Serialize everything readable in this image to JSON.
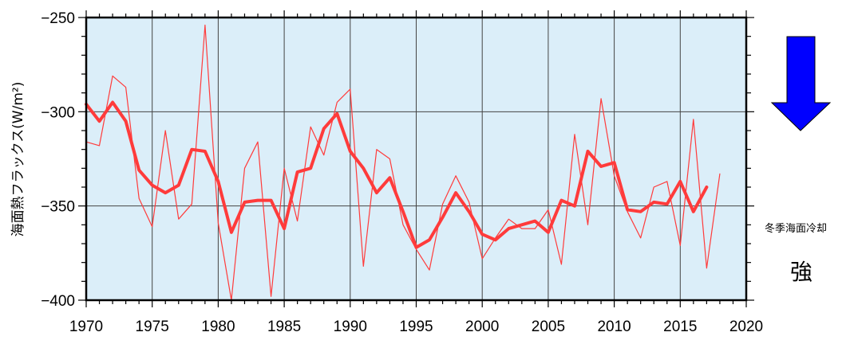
{
  "chart_data": {
    "type": "line",
    "title": "",
    "xlabel": "",
    "ylabel": "海面熱フラックス(W/m²)",
    "xlim": [
      1970,
      2020
    ],
    "ylim": [
      -400,
      -250
    ],
    "xticks": [
      1970,
      1975,
      1980,
      1985,
      1990,
      1995,
      2000,
      2005,
      2010,
      2015,
      2020
    ],
    "yticks": [
      -400,
      -350,
      -300,
      -250
    ],
    "grid": true,
    "legend": "none",
    "series": [
      {
        "style": "annual",
        "color": "#ff3b3b",
        "x": [
          1970,
          1971,
          1972,
          1973,
          1974,
          1975,
          1976,
          1977,
          1978,
          1979,
          1980,
          1981,
          1982,
          1983,
          1984,
          1985,
          1986,
          1987,
          1988,
          1989,
          1990,
          1991,
          1992,
          1993,
          1994,
          1995,
          1996,
          1997,
          1998,
          1999,
          2000,
          2001,
          2002,
          2003,
          2004,
          2005,
          2006,
          2007,
          2008,
          2009,
          2010,
          2011,
          2012,
          2013,
          2014,
          2015,
          2016,
          2017,
          2018
        ],
        "y": [
          -316,
          -318,
          -281,
          -287,
          -346,
          -361,
          -310,
          -357,
          -349,
          -254,
          -359,
          -400,
          -330,
          -316,
          -398,
          -330,
          -358,
          -308,
          -323,
          -295,
          -288,
          -382,
          -320,
          -325,
          -360,
          -373,
          -384,
          -349,
          -334,
          -348,
          -378,
          -367,
          -357,
          -362,
          -362,
          -352,
          -381,
          -312,
          -360,
          -293,
          -334,
          -353,
          -367,
          -340,
          -337,
          -371,
          -304,
          -383,
          -333
        ]
      },
      {
        "style": "smoothed",
        "color": "#ff3b3b",
        "x": [
          1970,
          1971,
          1972,
          1973,
          1974,
          1975,
          1976,
          1977,
          1978,
          1979,
          1980,
          1981,
          1982,
          1983,
          1984,
          1985,
          1986,
          1987,
          1988,
          1989,
          1990,
          1991,
          1992,
          1993,
          1994,
          1995,
          1996,
          1997,
          1998,
          1999,
          2000,
          2001,
          2002,
          2003,
          2004,
          2005,
          2006,
          2007,
          2008,
          2009,
          2010,
          2011,
          2012,
          2013,
          2014,
          2015,
          2016,
          2017
        ],
        "y": [
          -296,
          -305,
          -295,
          -305,
          -331,
          -339,
          -343,
          -339,
          -320,
          -321,
          -337,
          -364,
          -348,
          -347,
          -347,
          -362,
          -332,
          -330,
          -309,
          -301,
          -321,
          -330,
          -343,
          -335,
          -353,
          -372,
          -368,
          -356,
          -343,
          -353,
          -365,
          -368,
          -362,
          -360,
          -358,
          -364,
          -347,
          -350,
          -321,
          -329,
          -327,
          -352,
          -353,
          -348,
          -349,
          -337,
          -353,
          -340
        ]
      }
    ]
  },
  "annotations": {
    "direction_icon": "down-arrow-icon",
    "arrow_color": "#0000ff",
    "winter_cooling": "冬季海面冷却",
    "strong": "強"
  },
  "colors": {
    "plot_background": "#dbeef9",
    "line": "#ff3b3b"
  }
}
